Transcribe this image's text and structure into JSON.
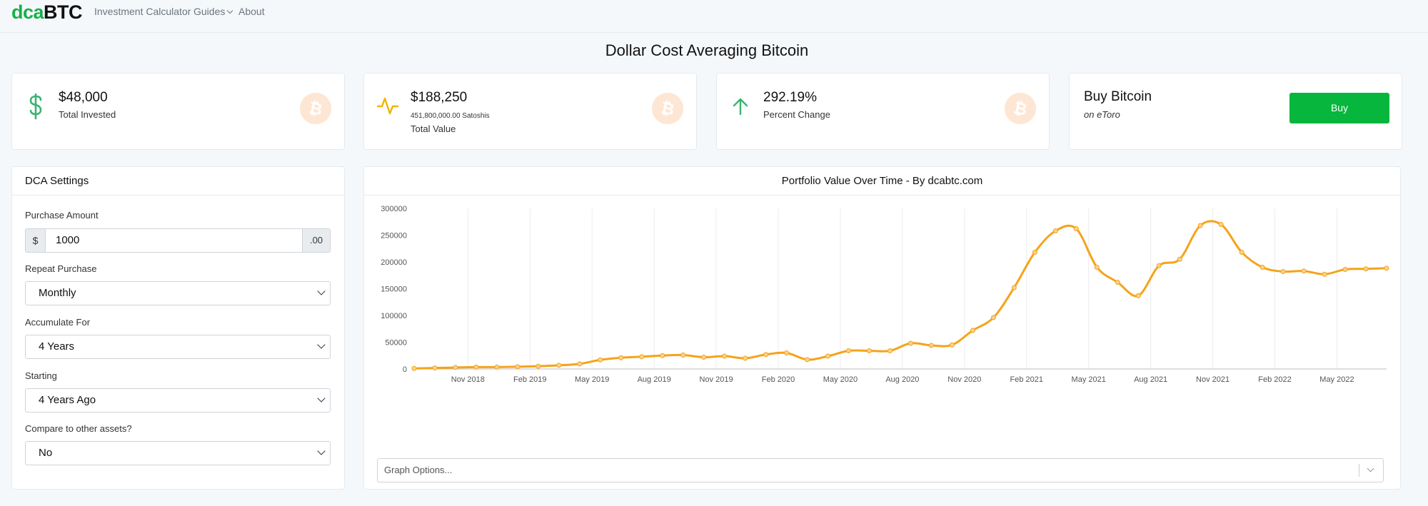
{
  "nav": {
    "logo_part1": "dca",
    "logo_part2": "BTC",
    "links": [
      "Investment Calculator",
      "Guides",
      "About"
    ]
  },
  "page_title": "Dollar Cost Averaging Bitcoin",
  "stats": {
    "invested": {
      "value": "$48,000",
      "label": "Total Invested",
      "icon": "dollar-icon",
      "icon_color": "#3cb371"
    },
    "total_value": {
      "value": "$188,250",
      "satoshis": "451,800,000.00 Satoshis",
      "label": "Total Value",
      "icon": "activity-icon",
      "icon_color": "#f0b400"
    },
    "percent_change": {
      "value": "292.19%",
      "label": "Percent Change",
      "icon": "arrow-up-icon",
      "icon_color": "#3cb371"
    },
    "buy": {
      "title": "Buy Bitcoin",
      "subtitle": "on eToro",
      "button_label": "Buy",
      "button_color": "#06b63d"
    },
    "bitcoin_glyph": "₿"
  },
  "dca_settings": {
    "title": "DCA Settings",
    "purchase_amount": {
      "label": "Purchase Amount",
      "prefix": "$",
      "value": "1000",
      "suffix": ".00"
    },
    "repeat_purchase": {
      "label": "Repeat Purchase",
      "value": "Monthly"
    },
    "accumulate_for": {
      "label": "Accumulate For",
      "value": "4 Years"
    },
    "starting": {
      "label": "Starting",
      "value": "4 Years Ago"
    },
    "compare": {
      "label": "Compare to other assets?",
      "value": "No"
    }
  },
  "chart_panel": {
    "graph_options_placeholder": "Graph Options..."
  },
  "chart_data": {
    "type": "line",
    "title": "Portfolio Value Over Time - By dcabtc.com",
    "line_color": "#f5a31a",
    "y_ticks": [
      "0",
      "50000",
      "100000",
      "150000",
      "200000",
      "250000",
      "300000"
    ],
    "ylim": [
      0,
      300000
    ],
    "x_tick_labels": [
      "Nov 2018",
      "Feb 2019",
      "May 2019",
      "Aug 2019",
      "Nov 2019",
      "Feb 2020",
      "May 2020",
      "Aug 2020",
      "Nov 2020",
      "Feb 2021",
      "May 2021",
      "Aug 2021",
      "Nov 2021",
      "Feb 2022",
      "May 2022"
    ],
    "x_tick_index": [
      2.6,
      5.6,
      8.6,
      11.6,
      14.6,
      17.6,
      20.6,
      23.6,
      26.6,
      29.6,
      32.6,
      35.6,
      38.6,
      41.6,
      44.6
    ],
    "values": [
      1000,
      1900,
      2800,
      3500,
      3500,
      4200,
      5200,
      6800,
      9500,
      17000,
      21000,
      23000,
      25000,
      26000,
      22000,
      24000,
      20000,
      27000,
      30000,
      17500,
      24000,
      34000,
      34000,
      34000,
      48000,
      44000,
      45000,
      72000,
      96000,
      152000,
      218000,
      258000,
      262000,
      190000,
      162000,
      137000,
      193000,
      205000,
      268000,
      270000,
      218000,
      190000,
      182000,
      183000,
      177000,
      186000,
      187000,
      188250
    ],
    "grid": true,
    "legend": "none"
  }
}
